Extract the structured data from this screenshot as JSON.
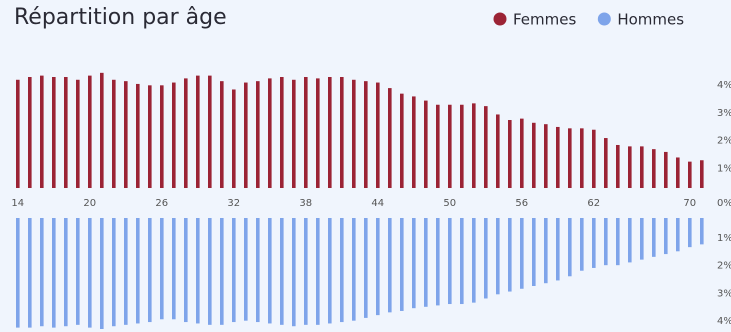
{
  "chart_data": {
    "type": "mirror-bar",
    "title": "Répartition par âge",
    "categories": [
      "14",
      null,
      null,
      null,
      null,
      null,
      "20",
      null,
      null,
      null,
      null,
      null,
      "26",
      null,
      null,
      null,
      null,
      null,
      "32",
      null,
      null,
      null,
      null,
      null,
      "38",
      null,
      null,
      null,
      null,
      null,
      "44",
      null,
      null,
      null,
      null,
      null,
      "50",
      null,
      null,
      null,
      null,
      null,
      "56",
      null,
      null,
      null,
      null,
      null,
      "62",
      null,
      null,
      null,
      null,
      null,
      null,
      null,
      "70",
      null
    ],
    "series": [
      {
        "name": "Femmes",
        "color": "#9b2335",
        "values": [
          3.9,
          4.0,
          4.05,
          4.0,
          4.0,
          3.9,
          4.05,
          4.15,
          3.9,
          3.85,
          3.75,
          3.7,
          3.7,
          3.8,
          3.95,
          4.05,
          4.05,
          3.85,
          3.55,
          3.8,
          3.85,
          3.95,
          4.0,
          3.9,
          4.0,
          3.95,
          4.0,
          4.0,
          3.9,
          3.85,
          3.8,
          3.6,
          3.4,
          3.3,
          3.15,
          3.0,
          3.0,
          3.0,
          3.05,
          2.95,
          2.65,
          2.45,
          2.5,
          2.35,
          2.3,
          2.2,
          2.15,
          2.15,
          2.1,
          1.8,
          1.55,
          1.5,
          1.5,
          1.4,
          1.3,
          1.1,
          0.95,
          1.0
        ]
      },
      {
        "name": "Hommes",
        "color": "#7ea4ea",
        "values": [
          -3.95,
          -3.95,
          -3.9,
          -3.95,
          -3.9,
          -3.85,
          -3.95,
          -4.0,
          -3.9,
          -3.85,
          -3.8,
          -3.75,
          -3.65,
          -3.65,
          -3.75,
          -3.8,
          -3.85,
          -3.85,
          -3.75,
          -3.7,
          -3.75,
          -3.8,
          -3.85,
          -3.9,
          -3.85,
          -3.85,
          -3.8,
          -3.75,
          -3.7,
          -3.6,
          -3.5,
          -3.4,
          -3.35,
          -3.25,
          -3.2,
          -3.15,
          -3.1,
          -3.1,
          -3.05,
          -2.9,
          -2.75,
          -2.65,
          -2.55,
          -2.45,
          -2.35,
          -2.25,
          -2.1,
          -1.9,
          -1.8,
          -1.7,
          -1.7,
          -1.6,
          -1.5,
          -1.4,
          -1.3,
          -1.2,
          -1.05,
          -0.95
        ]
      }
    ],
    "ylim": [
      -4.2,
      4.2
    ],
    "yticks": [
      {
        "value": 4,
        "label": "4%"
      },
      {
        "value": 3,
        "label": "3%"
      },
      {
        "value": 2,
        "label": "2%"
      },
      {
        "value": 1,
        "label": "1%"
      },
      {
        "value": 0,
        "label": "0%"
      },
      {
        "value": -1,
        "label": "1%"
      },
      {
        "value": -2,
        "label": "2%"
      },
      {
        "value": -3,
        "label": "3%"
      },
      {
        "value": -4,
        "label": "4%"
      }
    ],
    "legend": "top-right"
  }
}
